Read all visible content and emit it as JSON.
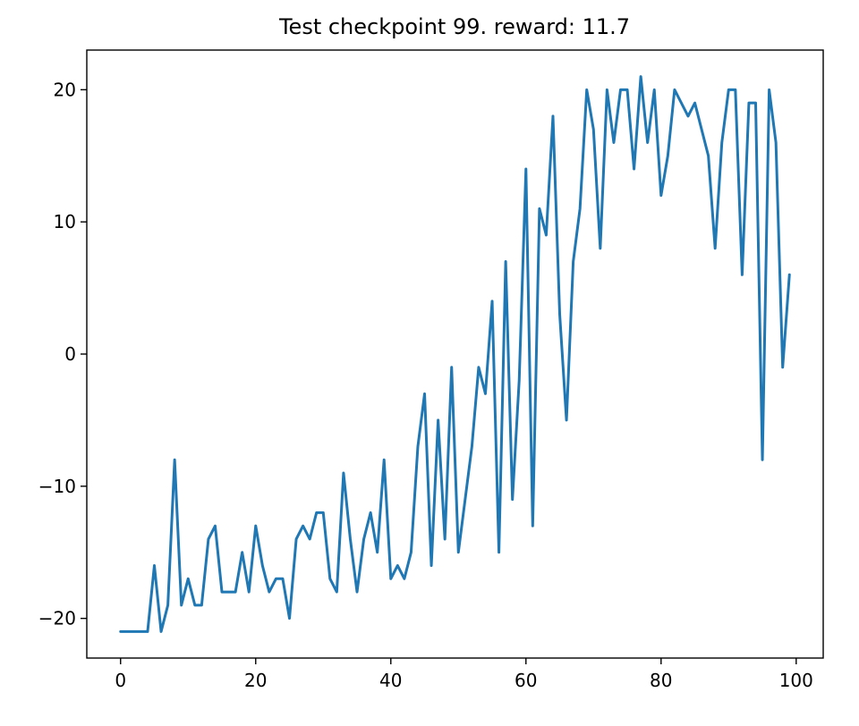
{
  "chart_data": {
    "type": "line",
    "title": "Test checkpoint 99. reward: 11.7",
    "xlabel": "",
    "ylabel": "",
    "xlim": [
      -5,
      104
    ],
    "ylim": [
      -23,
      23
    ],
    "xticks": [
      0,
      20,
      40,
      60,
      80,
      100
    ],
    "yticks": [
      -20,
      -10,
      0,
      10,
      20
    ],
    "xtick_labels": [
      "0",
      "20",
      "40",
      "60",
      "80",
      "100"
    ],
    "ytick_labels": [
      "−20",
      "−10",
      "0",
      "10",
      "20"
    ],
    "grid": false,
    "line_color": "#1f77b4",
    "series": [
      {
        "x": [
          0,
          1,
          2,
          3,
          4,
          5,
          6,
          7,
          8,
          9,
          10,
          11,
          12,
          13,
          14,
          15,
          16,
          17,
          18,
          19,
          20,
          21,
          22,
          23,
          24,
          25,
          26,
          27,
          28,
          29,
          30,
          31,
          32,
          33,
          34,
          35,
          36,
          37,
          38,
          39,
          40,
          41,
          42,
          43,
          44,
          45,
          46,
          47,
          48,
          49,
          50,
          51,
          52,
          53,
          54,
          55,
          56,
          57,
          58,
          59,
          60,
          61,
          62,
          63,
          64,
          65,
          66,
          67,
          68,
          69,
          70,
          71,
          72,
          73,
          74,
          75,
          76,
          77,
          78,
          79,
          80,
          81,
          82,
          83,
          84,
          85,
          86,
          87,
          88,
          89,
          90,
          91,
          92,
          93,
          94,
          95,
          96,
          97,
          98,
          99
        ],
        "values": [
          -21,
          -21,
          -21,
          -21,
          -21,
          -16,
          -21,
          -19,
          -8,
          -19,
          -17,
          -19,
          -19,
          -14,
          -13,
          -18,
          -18,
          -18,
          -15,
          -18,
          -13,
          -16,
          -18,
          -17,
          -17,
          -20,
          -14,
          -13,
          -14,
          -12,
          -12,
          -17,
          -18,
          -9,
          -14,
          -18,
          -14,
          -12,
          -15,
          -8,
          -17,
          -16,
          -17,
          -15,
          -7,
          -3,
          -16,
          -5,
          -14,
          -1,
          -15,
          -11,
          -7,
          -1,
          -3,
          4,
          -15,
          7,
          -11,
          -2,
          14,
          -13,
          11,
          9,
          18,
          3,
          -5,
          7,
          11,
          20,
          17,
          8,
          20,
          16,
          20,
          20,
          14,
          21,
          16,
          20,
          12,
          15,
          20,
          19,
          18,
          19,
          17,
          15,
          8,
          16,
          20,
          20,
          6,
          19,
          19,
          -8,
          20,
          16,
          -1,
          6
        ]
      }
    ]
  }
}
